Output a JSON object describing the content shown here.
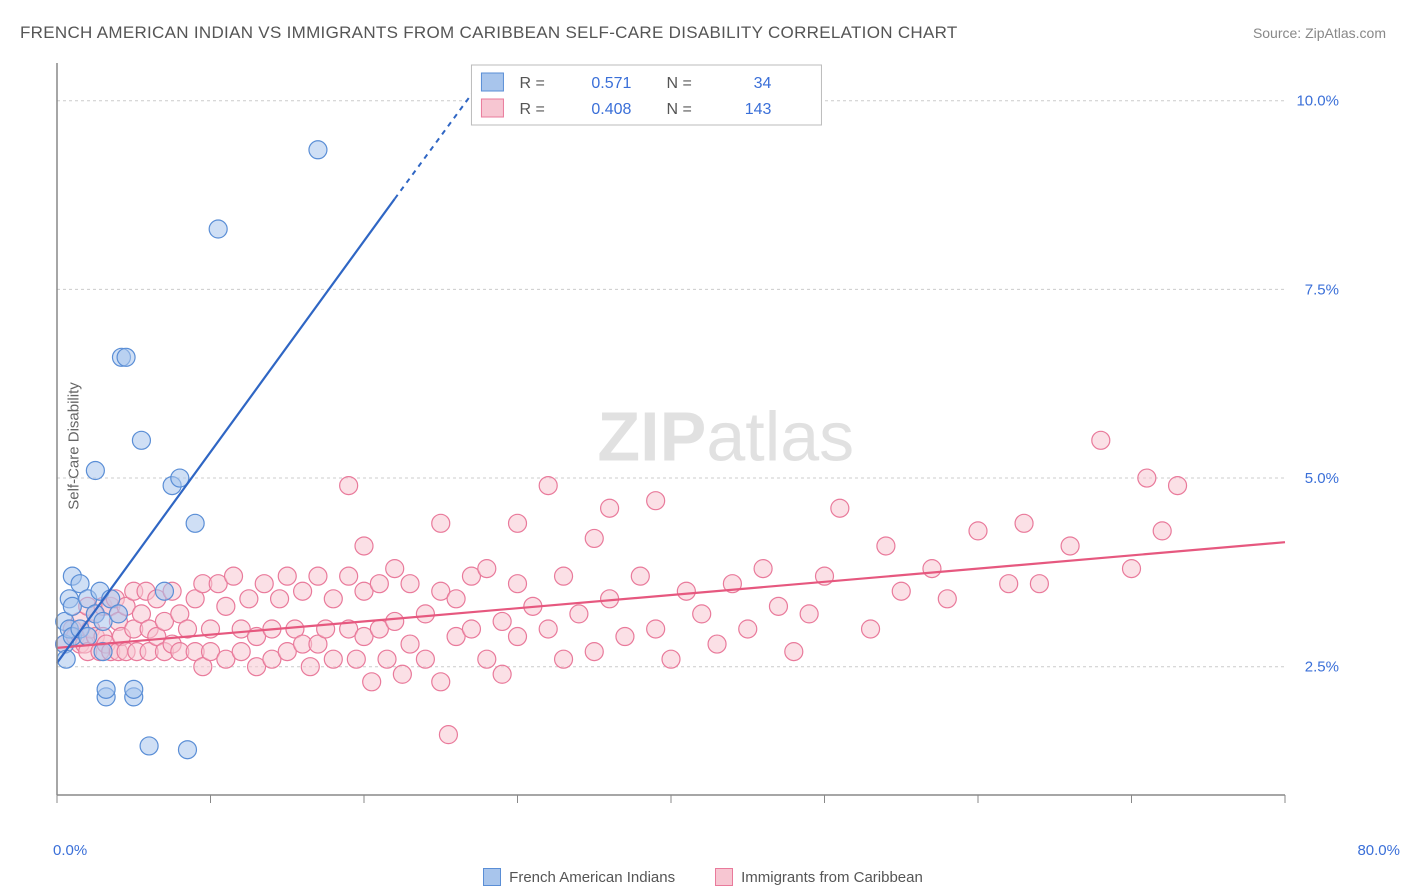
{
  "header": {
    "title": "FRENCH AMERICAN INDIAN VS IMMIGRANTS FROM CARIBBEAN SELF-CARE DISABILITY CORRELATION CHART",
    "source_prefix": "Source: ",
    "source_name": "ZipAtlas.com"
  },
  "axes": {
    "ylabel": "Self-Care Disability",
    "x_min": 0,
    "x_max": 80,
    "y_min": 0.8,
    "y_max": 10.5,
    "x_ticks": [
      0,
      10,
      20,
      30,
      40,
      50,
      60,
      70,
      80
    ],
    "x_tick_labels": {
      "0": "0.0%",
      "80": "80.0%"
    },
    "y_grid": [
      2.5,
      5.0,
      7.5,
      10.0
    ],
    "y_grid_labels": [
      "2.5%",
      "5.0%",
      "7.5%",
      "10.0%"
    ]
  },
  "colors": {
    "blue_fill": "#a8c5ec",
    "blue_stroke": "#5a8ed6",
    "blue_line": "#2f66c4",
    "pink_fill": "#f7c6d2",
    "pink_stroke": "#e97a9b",
    "pink_line": "#e6587f",
    "tick_text": "#3a6fd8",
    "grid": "#cccccc",
    "axis": "#888888"
  },
  "legend_top": {
    "series": [
      {
        "swatch": "blue",
        "r_label": "R =",
        "r_val": "0.571",
        "n_label": "N =",
        "n_val": "34"
      },
      {
        "swatch": "pink",
        "r_label": "R =",
        "r_val": "0.408",
        "n_label": "N =",
        "n_val": "143"
      }
    ]
  },
  "legend_bottom": {
    "items": [
      {
        "swatch": "blue",
        "label": "French American Indians"
      },
      {
        "swatch": "pink",
        "label": "Immigrants from Caribbean"
      }
    ]
  },
  "watermark": {
    "part1": "ZIP",
    "part2": "atlas"
  },
  "trend_lines": {
    "blue_solid": {
      "x1": 0,
      "y1": 2.55,
      "x2": 22,
      "y2": 8.7
    },
    "blue_dash": {
      "x1": 22,
      "y1": 8.7,
      "x2": 28.5,
      "y2": 10.5
    },
    "pink": {
      "x1": 0,
      "y1": 2.75,
      "x2": 80,
      "y2": 4.15
    }
  },
  "marker": {
    "radius": 9,
    "fill_opacity": 0.55
  },
  "series_blue": [
    [
      0.5,
      2.8
    ],
    [
      0.5,
      3.1
    ],
    [
      0.6,
      2.6
    ],
    [
      0.8,
      3.4
    ],
    [
      0.8,
      3.0
    ],
    [
      1.0,
      3.7
    ],
    [
      1.0,
      2.9
    ],
    [
      1.0,
      3.3
    ],
    [
      1.5,
      3.0
    ],
    [
      1.5,
      3.6
    ],
    [
      2.0,
      3.4
    ],
    [
      2.0,
      2.9
    ],
    [
      2.5,
      3.2
    ],
    [
      2.5,
      5.1
    ],
    [
      2.8,
      3.5
    ],
    [
      3.0,
      3.1
    ],
    [
      3.0,
      2.7
    ],
    [
      3.2,
      2.1
    ],
    [
      3.2,
      2.2
    ],
    [
      3.5,
      3.4
    ],
    [
      4.0,
      3.2
    ],
    [
      4.2,
      6.6
    ],
    [
      4.5,
      6.6
    ],
    [
      5.0,
      2.1
    ],
    [
      5.0,
      2.2
    ],
    [
      5.5,
      5.5
    ],
    [
      6.0,
      1.45
    ],
    [
      7.0,
      3.5
    ],
    [
      7.5,
      4.9
    ],
    [
      8.0,
      5.0
    ],
    [
      8.5,
      1.4
    ],
    [
      9.0,
      4.4
    ],
    [
      10.5,
      8.3
    ],
    [
      17.0,
      9.35
    ]
  ],
  "series_pink": [
    [
      0.5,
      2.8
    ],
    [
      1.0,
      3.0
    ],
    [
      1.2,
      2.9
    ],
    [
      1.5,
      3.1
    ],
    [
      1.5,
      2.8
    ],
    [
      1.8,
      2.8
    ],
    [
      2.0,
      3.3
    ],
    [
      2.0,
      2.7
    ],
    [
      2.2,
      3.0
    ],
    [
      2.5,
      3.2
    ],
    [
      2.5,
      2.9
    ],
    [
      2.8,
      2.7
    ],
    [
      3.0,
      3.3
    ],
    [
      3.0,
      2.9
    ],
    [
      3.2,
      2.8
    ],
    [
      3.5,
      3.3
    ],
    [
      3.5,
      2.7
    ],
    [
      3.8,
      3.4
    ],
    [
      4.0,
      3.1
    ],
    [
      4.0,
      2.7
    ],
    [
      4.2,
      2.9
    ],
    [
      4.5,
      3.3
    ],
    [
      4.5,
      2.7
    ],
    [
      5.0,
      3.5
    ],
    [
      5.0,
      3.0
    ],
    [
      5.2,
      2.7
    ],
    [
      5.5,
      3.2
    ],
    [
      5.8,
      3.5
    ],
    [
      6.0,
      3.0
    ],
    [
      6.0,
      2.7
    ],
    [
      6.5,
      3.4
    ],
    [
      6.5,
      2.9
    ],
    [
      7.0,
      3.1
    ],
    [
      7.0,
      2.7
    ],
    [
      7.5,
      3.5
    ],
    [
      7.5,
      2.8
    ],
    [
      8.0,
      3.2
    ],
    [
      8.0,
      2.7
    ],
    [
      8.5,
      3.0
    ],
    [
      9.0,
      3.4
    ],
    [
      9.0,
      2.7
    ],
    [
      9.5,
      3.6
    ],
    [
      9.5,
      2.5
    ],
    [
      10.0,
      3.0
    ],
    [
      10.0,
      2.7
    ],
    [
      10.5,
      3.6
    ],
    [
      11.0,
      2.6
    ],
    [
      11.0,
      3.3
    ],
    [
      11.5,
      3.7
    ],
    [
      12.0,
      3.0
    ],
    [
      12.0,
      2.7
    ],
    [
      12.5,
      3.4
    ],
    [
      13.0,
      2.9
    ],
    [
      13.0,
      2.5
    ],
    [
      13.5,
      3.6
    ],
    [
      14.0,
      3.0
    ],
    [
      14.0,
      2.6
    ],
    [
      14.5,
      3.4
    ],
    [
      15.0,
      3.7
    ],
    [
      15.0,
      2.7
    ],
    [
      15.5,
      3.0
    ],
    [
      16.0,
      3.5
    ],
    [
      16.0,
      2.8
    ],
    [
      16.5,
      2.5
    ],
    [
      17.0,
      3.7
    ],
    [
      17.0,
      2.8
    ],
    [
      17.5,
      3.0
    ],
    [
      18.0,
      2.6
    ],
    [
      18.0,
      3.4
    ],
    [
      19.0,
      4.9
    ],
    [
      19.0,
      3.7
    ],
    [
      19.0,
      3.0
    ],
    [
      19.5,
      2.6
    ],
    [
      20.0,
      4.1
    ],
    [
      20.0,
      3.5
    ],
    [
      20.0,
      2.9
    ],
    [
      20.5,
      2.3
    ],
    [
      21.0,
      3.6
    ],
    [
      21.0,
      3.0
    ],
    [
      21.5,
      2.6
    ],
    [
      22.0,
      3.8
    ],
    [
      22.0,
      3.1
    ],
    [
      22.5,
      2.4
    ],
    [
      23.0,
      3.6
    ],
    [
      23.0,
      2.8
    ],
    [
      24.0,
      3.2
    ],
    [
      24.0,
      2.6
    ],
    [
      25.0,
      4.4
    ],
    [
      25.0,
      3.5
    ],
    [
      25.0,
      2.3
    ],
    [
      25.5,
      1.6
    ],
    [
      26.0,
      2.9
    ],
    [
      26.0,
      3.4
    ],
    [
      27.0,
      3.7
    ],
    [
      27.0,
      3.0
    ],
    [
      28.0,
      2.6
    ],
    [
      28.0,
      3.8
    ],
    [
      29.0,
      3.1
    ],
    [
      29.0,
      2.4
    ],
    [
      30.0,
      4.4
    ],
    [
      30.0,
      3.6
    ],
    [
      30.0,
      2.9
    ],
    [
      31.0,
      3.3
    ],
    [
      32.0,
      4.9
    ],
    [
      32.0,
      3.0
    ],
    [
      33.0,
      2.6
    ],
    [
      33.0,
      3.7
    ],
    [
      34.0,
      3.2
    ],
    [
      35.0,
      2.7
    ],
    [
      35.0,
      4.2
    ],
    [
      36.0,
      4.6
    ],
    [
      36.0,
      3.4
    ],
    [
      37.0,
      2.9
    ],
    [
      38.0,
      3.7
    ],
    [
      39.0,
      3.0
    ],
    [
      39.0,
      4.7
    ],
    [
      40.0,
      2.6
    ],
    [
      41.0,
      3.5
    ],
    [
      42.0,
      3.2
    ],
    [
      43.0,
      2.8
    ],
    [
      44.0,
      3.6
    ],
    [
      45.0,
      3.0
    ],
    [
      46.0,
      3.8
    ],
    [
      47.0,
      3.3
    ],
    [
      48.0,
      2.7
    ],
    [
      49.0,
      3.2
    ],
    [
      50.0,
      3.7
    ],
    [
      51.0,
      4.6
    ],
    [
      53.0,
      3.0
    ],
    [
      54.0,
      4.1
    ],
    [
      55.0,
      3.5
    ],
    [
      57.0,
      3.8
    ],
    [
      58.0,
      3.4
    ],
    [
      60.0,
      4.3
    ],
    [
      62.0,
      3.6
    ],
    [
      63.0,
      4.4
    ],
    [
      64.0,
      3.6
    ],
    [
      66.0,
      4.1
    ],
    [
      68.0,
      5.5
    ],
    [
      70.0,
      3.8
    ],
    [
      71.0,
      5.0
    ],
    [
      72.0,
      4.3
    ],
    [
      73.0,
      4.9
    ]
  ]
}
